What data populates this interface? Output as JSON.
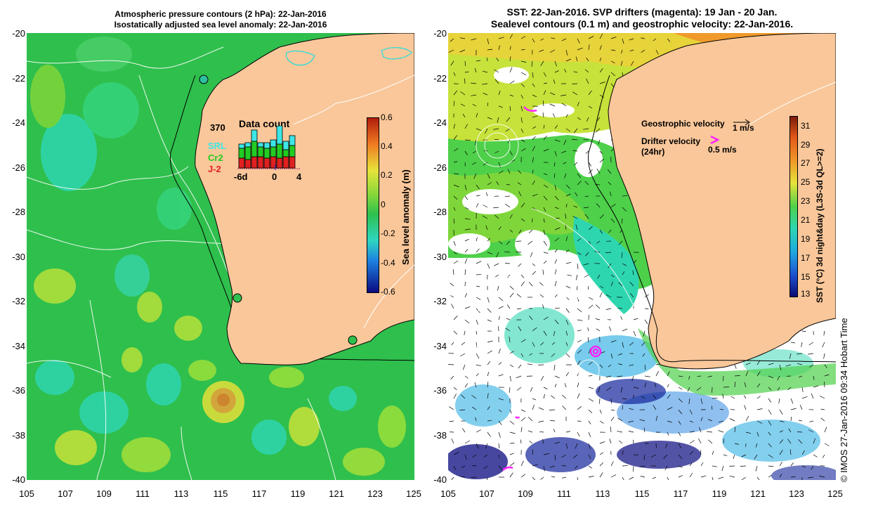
{
  "left_panel": {
    "title_line1": "Atmospheric pressure contours (2 hPa): 22-Jan-2016",
    "title_line2": "Isostatically adjusted sea level anomaly: 22-Jan-2016",
    "colorbar": {
      "title": "Sea level anomaly (m)",
      "ticks": [
        "0.6",
        "0.4",
        "0.2",
        "0",
        "-0.2",
        "-0.4",
        "-0.6"
      ]
    },
    "inset": {
      "title": "Data count",
      "max_count": "370",
      "legend": [
        {
          "name": "SRL",
          "color": "#3ce6e6"
        },
        {
          "name": "Cr2",
          "color": "#22cc22"
        },
        {
          "name": "J-2",
          "color": "#e02020"
        }
      ],
      "axis_labels": [
        "-6d",
        "0",
        "4"
      ]
    }
  },
  "right_panel": {
    "title_line1": "SST: 22-Jan-2016. SVP drifters (magenta): 19 Jan - 20 Jan.",
    "title_line2": "Sealevel contours (0.1 m) and geostrophic velocity: 22-Jan-2016.",
    "legend": {
      "geostrophic_label": "Geostrophic velocity",
      "geostrophic_scale": "1 m/s",
      "drifter_label_line1": "Drifter velocity",
      "drifter_label_line2": "(24hr)",
      "drifter_scale": "0.5 m/s"
    },
    "colorbar": {
      "title": "SST (°C) 3d night&day (L3S-3d QL>=2)",
      "ticks": [
        "31",
        "29",
        "27",
        "25",
        "23",
        "21",
        "19",
        "17",
        "15",
        "13"
      ]
    }
  },
  "axes": {
    "lat_ticks": [
      "-20",
      "-22",
      "-24",
      "-26",
      "-28",
      "-30",
      "-32",
      "-34",
      "-36",
      "-38",
      "-40"
    ],
    "lon_ticks": [
      "105",
      "107",
      "109",
      "111",
      "113",
      "115",
      "117",
      "119",
      "121",
      "123",
      "125"
    ]
  },
  "credit": "© IMOS 27-Jan-2016 09:34 Hobart Time",
  "colors": {
    "land": "#f9c79a",
    "ocean_base": "#2ec04e",
    "coast": "#000000"
  }
}
